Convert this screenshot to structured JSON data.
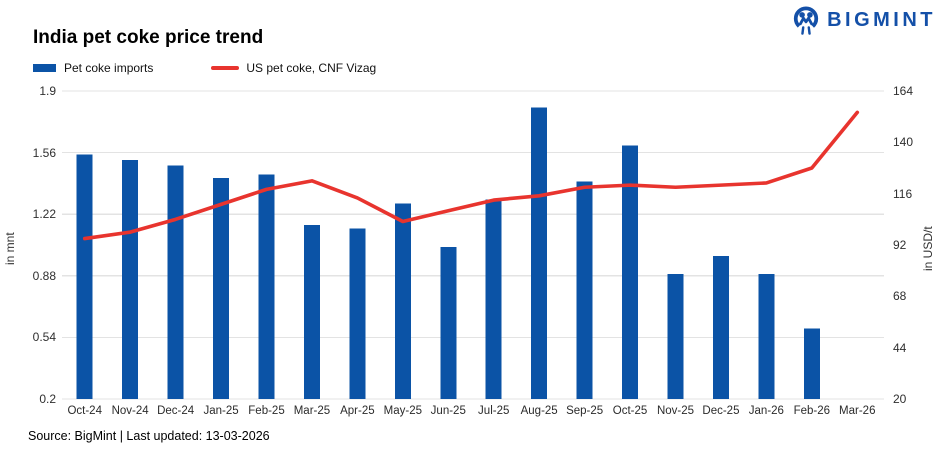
{
  "header": {
    "logo_text": "BIGMINT",
    "title": "India pet coke price trend"
  },
  "legend": {
    "items": [
      {
        "label": "Pet coke imports",
        "swatch": "bar"
      },
      {
        "label": "US pet coke, CNF Vizag",
        "swatch": "line"
      }
    ]
  },
  "footer": {
    "source_note": "Source: BigMint | Last updated: 13-03-2026"
  },
  "colors": {
    "bar_blue": "#0B53A6",
    "line_red": "#E8342E",
    "logo_navy": "#1450A8",
    "grid_gray": "#E3E3E3",
    "tick_text": "#2f2f2f"
  },
  "chart_data": {
    "type": "bar",
    "subtype": "bar+line dual axis",
    "title": "India pet coke price trend",
    "categories": [
      "Oct-24",
      "Nov-24",
      "Dec-24",
      "Jan-25",
      "Feb-25",
      "Mar-25",
      "Apr-25",
      "May-25",
      "Jun-25",
      "Jul-25",
      "Aug-25",
      "Sep-25",
      "Oct-25",
      "Nov-25",
      "Dec-25",
      "Jan-26",
      "Feb-26",
      "Mar-26"
    ],
    "series": [
      {
        "name": "Pet coke imports",
        "type": "bar",
        "axis": "left",
        "unit": "mnt",
        "color": "#0B53A6",
        "values": [
          1.55,
          1.52,
          1.49,
          1.42,
          1.44,
          1.16,
          1.14,
          1.28,
          1.04,
          1.3,
          1.81,
          1.4,
          1.6,
          0.89,
          0.99,
          0.89,
          0.59,
          null
        ]
      },
      {
        "name": "US pet coke, CNF Vizag",
        "type": "line",
        "axis": "right",
        "unit": "USD/t",
        "color": "#E8342E",
        "values": [
          95,
          98,
          104,
          111,
          118,
          122,
          114,
          103,
          108,
          113,
          115,
          119,
          120,
          119,
          120,
          121,
          128,
          154
        ]
      }
    ],
    "left_axis": {
      "label": "in mnt",
      "min": 0.2,
      "max": 1.9,
      "ticks": [
        "1.9",
        "1.56",
        "1.22",
        "0.88",
        "0.54",
        "0.2"
      ]
    },
    "right_axis": {
      "label": "in USD/t",
      "min": 20,
      "max": 164,
      "ticks": [
        "164",
        "140",
        "116",
        "92",
        "68",
        "44",
        "20"
      ]
    },
    "grid": true,
    "legend_position": "top-left"
  }
}
